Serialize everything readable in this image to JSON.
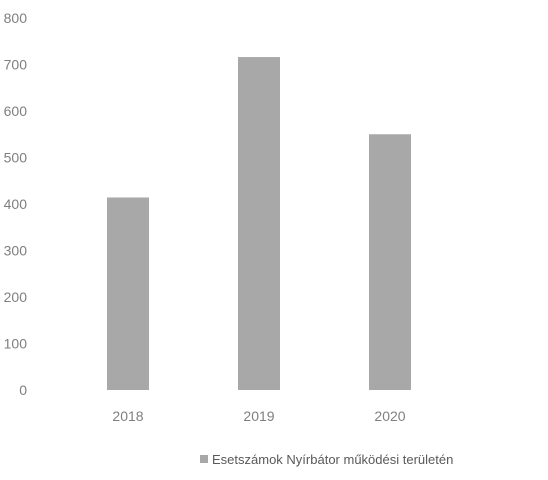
{
  "chart_data": {
    "type": "bar",
    "categories": [
      "2018",
      "2019",
      "2020"
    ],
    "series": [
      {
        "name": "Esetszámok Nyírbátor működési területén",
        "values": [
          414,
          716,
          550
        ]
      }
    ],
    "ylim": [
      0,
      800
    ],
    "yticks": [
      "0",
      "100",
      "200",
      "300",
      "400",
      "500",
      "600",
      "700",
      "800"
    ],
    "grid": false,
    "legend_position": "bottom-right",
    "colors": {
      "bar": "#a8a8a8",
      "tick_text": "#7f7f7f",
      "legend_text": "#595959"
    }
  }
}
